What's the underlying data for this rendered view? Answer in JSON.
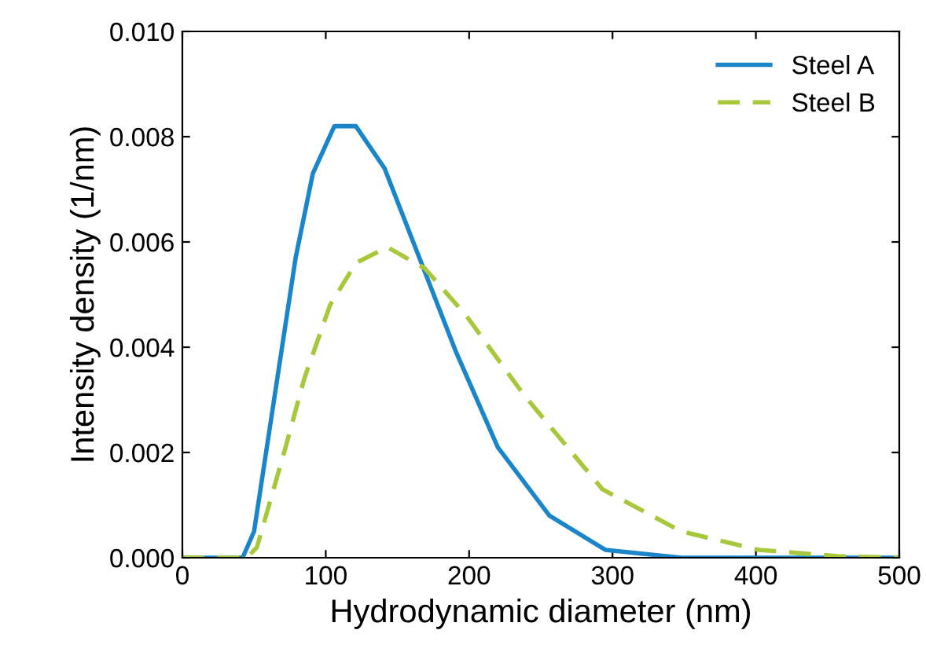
{
  "chart_data": {
    "type": "line",
    "xlabel": "Hydrodynamic diameter (nm)",
    "ylabel": "Intensity density (1/nm)",
    "xlim": [
      0,
      500
    ],
    "ylim": [
      0,
      0.01
    ],
    "xticks": [
      0,
      100,
      200,
      300,
      400,
      500
    ],
    "yticks": [
      {
        "value": 0,
        "label": "0.000"
      },
      {
        "value": 0.002,
        "label": "0.002"
      },
      {
        "value": 0.004,
        "label": "0.004"
      },
      {
        "value": 0.006,
        "label": "0.006"
      },
      {
        "value": 0.008,
        "label": "0.008"
      },
      {
        "value": 0.01,
        "label": "0.010"
      }
    ],
    "legend": "top right",
    "grid": false,
    "series": [
      {
        "name": "Steel A",
        "color": "#1a85c8",
        "line_style": "solid",
        "x": [
          0,
          42,
          50,
          79,
          91,
          106,
          121,
          141,
          191,
          220,
          256,
          295,
          348,
          500
        ],
        "values": [
          0,
          0,
          0.0005,
          0.0057,
          0.0073,
          0.0082,
          0.0082,
          0.0074,
          0.0039,
          0.0021,
          0.0008,
          0.00015,
          0,
          0
        ]
      },
      {
        "name": "Steel B",
        "color": "#a8c83c",
        "line_style": "dashed",
        "x": [
          0,
          45,
          52,
          72,
          85,
          103,
          121,
          143,
          169,
          198,
          238,
          293,
          348,
          402,
          457,
          500
        ],
        "values": [
          0,
          0,
          0.0002,
          0.0021,
          0.0034,
          0.0048,
          0.0056,
          0.0059,
          0.0055,
          0.0046,
          0.0031,
          0.0013,
          0.0005,
          0.00015,
          3e-05,
          0
        ]
      }
    ]
  }
}
